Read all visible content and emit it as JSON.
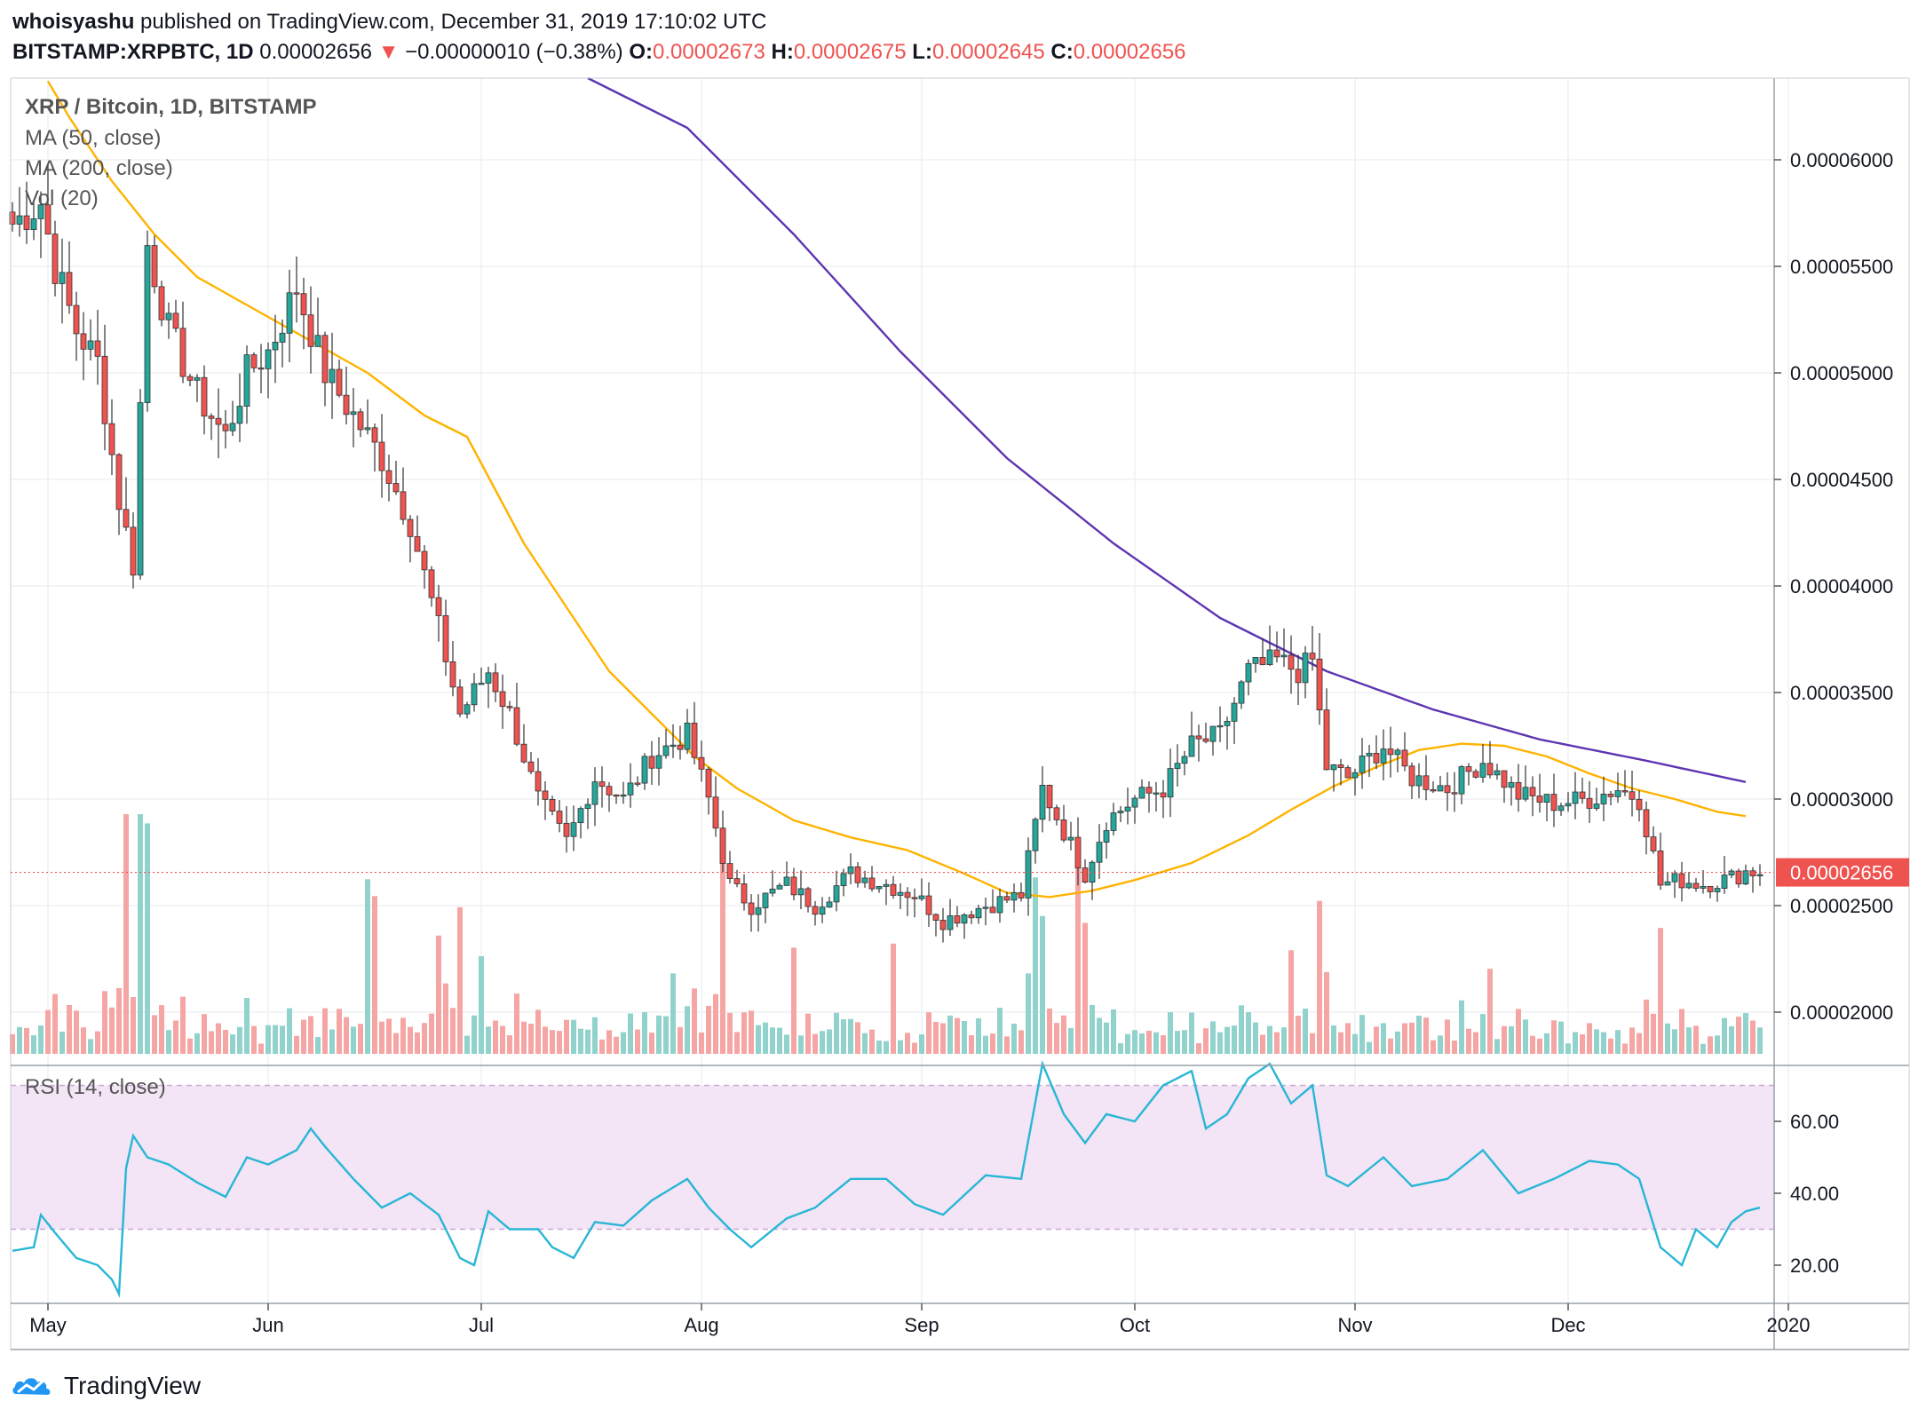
{
  "header": {
    "publisher": "whoisyashu",
    "published_text": "published on TradingView.com, December 31, 2019 17:10:02 UTC",
    "symbol": "BITSTAMP:XRPBTC, 1D",
    "last": "0.00002656",
    "change_arrow": "▼",
    "change": "−0.00000010 (−0.38%)",
    "o_label": "O:",
    "o_value": "0.00002673",
    "h_label": "H:",
    "h_value": "0.00002675",
    "l_label": "L:",
    "l_value": "0.00002645",
    "c_label": "C:",
    "c_value": "0.00002656"
  },
  "legend": {
    "title": "XRP / Bitcoin, 1D, BITSTAMP",
    "ma50": "MA (50, close)",
    "ma200": "MA (200, close)",
    "vol": "Vol (20)",
    "rsi": "RSI (14, close)"
  },
  "footer": {
    "brand": "TradingView"
  },
  "colors": {
    "up": "#26a69a",
    "down": "#ef5350",
    "ma50": "#ffb300",
    "ma200": "#5e35b1",
    "rsi_line": "#29b6d6",
    "rsi_band": "#f3e5f5",
    "price_label": "#ef5350"
  },
  "chart_data": {
    "type": "candlestick",
    "price_axis": {
      "ticks": [
        {
          "value": 6e-05,
          "label": "0.00006000"
        },
        {
          "value": 5.5e-05,
          "label": "0.00005500"
        },
        {
          "value": 5e-05,
          "label": "0.00005000"
        },
        {
          "value": 4.5e-05,
          "label": "0.00004500"
        },
        {
          "value": 4e-05,
          "label": "0.00004000"
        },
        {
          "value": 3.5e-05,
          "label": "0.00003500"
        },
        {
          "value": 3e-05,
          "label": "0.00003000"
        },
        {
          "value": 2.5e-05,
          "label": "0.00002500"
        },
        {
          "value": 2e-05,
          "label": "0.00002000"
        }
      ],
      "last_price": 2.656e-05,
      "last_price_label": "0.00002656"
    },
    "rsi_axis": {
      "ticks": [
        {
          "value": 60,
          "label": "60.00"
        },
        {
          "value": 40,
          "label": "40.00"
        },
        {
          "value": 20,
          "label": "20.00"
        }
      ],
      "band_upper": 70,
      "band_lower": 30
    },
    "time_axis": {
      "labels": [
        {
          "day": 5,
          "label": "May"
        },
        {
          "day": 36,
          "label": "Jun"
        },
        {
          "day": 66,
          "label": "Jul"
        },
        {
          "day": 97,
          "label": "Aug"
        },
        {
          "day": 128,
          "label": "Sep"
        },
        {
          "day": 158,
          "label": "Oct"
        },
        {
          "day": 189,
          "label": "Nov"
        },
        {
          "day": 219,
          "label": "Dec"
        },
        {
          "day": 250,
          "label": "2020"
        }
      ]
    },
    "anchors": {
      "close": [
        [
          0,
          5.7e-05
        ],
        [
          4,
          5.8e-05
        ],
        [
          6,
          5.5e-05
        ],
        [
          9,
          5.2e-05
        ],
        [
          12,
          5.05e-05
        ],
        [
          15,
          4.4e-05
        ],
        [
          17,
          4.1e-05
        ],
        [
          19,
          5.6e-05
        ],
        [
          22,
          5.2e-05
        ],
        [
          26,
          4.9e-05
        ],
        [
          30,
          4.7e-05
        ],
        [
          33,
          5e-05
        ],
        [
          36,
          5.1e-05
        ],
        [
          40,
          5.4e-05
        ],
        [
          44,
          5e-05
        ],
        [
          48,
          4.8e-05
        ],
        [
          52,
          4.6e-05
        ],
        [
          56,
          4.3e-05
        ],
        [
          60,
          3.8e-05
        ],
        [
          63,
          3.4e-05
        ],
        [
          67,
          3.6e-05
        ],
        [
          70,
          3.4e-05
        ],
        [
          74,
          3e-05
        ],
        [
          78,
          2.8e-05
        ],
        [
          82,
          3.1e-05
        ],
        [
          86,
          3e-05
        ],
        [
          90,
          3.2e-05
        ],
        [
          95,
          3.3e-05
        ],
        [
          98,
          3e-05
        ],
        [
          101,
          2.6e-05
        ],
        [
          104,
          2.5e-05
        ],
        [
          109,
          2.6e-05
        ],
        [
          113,
          2.5e-05
        ],
        [
          118,
          2.65e-05
        ],
        [
          123,
          2.6e-05
        ],
        [
          127,
          2.55e-05
        ],
        [
          131,
          2.43e-05
        ],
        [
          137,
          2.5e-05
        ],
        [
          142,
          2.55e-05
        ],
        [
          145,
          3.05e-05
        ],
        [
          148,
          2.85e-05
        ],
        [
          151,
          2.65e-05
        ],
        [
          154,
          2.9e-05
        ],
        [
          158,
          3e-05
        ],
        [
          162,
          3.05e-05
        ],
        [
          166,
          3.25e-05
        ],
        [
          170,
          3.3e-05
        ],
        [
          174,
          3.6e-05
        ],
        [
          178,
          3.65e-05
        ],
        [
          181,
          3.6e-05
        ],
        [
          183,
          3.65e-05
        ],
        [
          185,
          3.15e-05
        ],
        [
          188,
          3.1e-05
        ],
        [
          193,
          3.25e-05
        ],
        [
          197,
          3.1e-05
        ],
        [
          202,
          3.05e-05
        ],
        [
          207,
          3.18e-05
        ],
        [
          212,
          3.02e-05
        ],
        [
          217,
          2.98e-05
        ],
        [
          222,
          3e-05
        ],
        [
          226,
          3.05e-05
        ],
        [
          229,
          3e-05
        ],
        [
          232,
          2.6e-05
        ],
        [
          235,
          2.62e-05
        ],
        [
          238,
          2.6e-05
        ],
        [
          242,
          2.63e-05
        ],
        [
          244,
          2.66e-05
        ]
      ],
      "ma50": [
        [
          0,
          6.65e-05
        ],
        [
          8,
          6.2e-05
        ],
        [
          14,
          5.9e-05
        ],
        [
          20,
          5.65e-05
        ],
        [
          26,
          5.45e-05
        ],
        [
          34,
          5.3e-05
        ],
        [
          42,
          5.15e-05
        ],
        [
          50,
          5e-05
        ],
        [
          58,
          4.8e-05
        ],
        [
          64,
          4.7e-05
        ],
        [
          68,
          4.45e-05
        ],
        [
          72,
          4.2e-05
        ],
        [
          78,
          3.9e-05
        ],
        [
          84,
          3.6e-05
        ],
        [
          90,
          3.4e-05
        ],
        [
          96,
          3.2e-05
        ],
        [
          102,
          3.05e-05
        ],
        [
          110,
          2.9e-05
        ],
        [
          118,
          2.82e-05
        ],
        [
          126,
          2.76e-05
        ],
        [
          134,
          2.65e-05
        ],
        [
          140,
          2.56e-05
        ],
        [
          146,
          2.54e-05
        ],
        [
          152,
          2.57e-05
        ],
        [
          158,
          2.62e-05
        ],
        [
          166,
          2.7e-05
        ],
        [
          174,
          2.83e-05
        ],
        [
          180,
          2.95e-05
        ],
        [
          186,
          3.06e-05
        ],
        [
          192,
          3.15e-05
        ],
        [
          198,
          3.23e-05
        ],
        [
          204,
          3.26e-05
        ],
        [
          210,
          3.25e-05
        ],
        [
          216,
          3.2e-05
        ],
        [
          222,
          3.12e-05
        ],
        [
          228,
          3.05e-05
        ],
        [
          234,
          3e-05
        ],
        [
          240,
          2.94e-05
        ],
        [
          244,
          2.92e-05
        ]
      ],
      "ma200": [
        [
          0,
          7.8e-05
        ],
        [
          20,
          7.45e-05
        ],
        [
          50,
          6.95e-05
        ],
        [
          80,
          6.4e-05
        ],
        [
          95,
          6.15e-05
        ],
        [
          110,
          5.65e-05
        ],
        [
          125,
          5.1e-05
        ],
        [
          140,
          4.6e-05
        ],
        [
          155,
          4.2e-05
        ],
        [
          170,
          3.85e-05
        ],
        [
          185,
          3.6e-05
        ],
        [
          200,
          3.42e-05
        ],
        [
          215,
          3.28e-05
        ],
        [
          230,
          3.18e-05
        ],
        [
          244,
          3.08e-05
        ]
      ],
      "rsi": [
        [
          0,
          24
        ],
        [
          3,
          25
        ],
        [
          4,
          34
        ],
        [
          6,
          29
        ],
        [
          9,
          22
        ],
        [
          12,
          20
        ],
        [
          14,
          16
        ],
        [
          15,
          12
        ],
        [
          16,
          47
        ],
        [
          17,
          56
        ],
        [
          19,
          50
        ],
        [
          22,
          48
        ],
        [
          26,
          43
        ],
        [
          30,
          39
        ],
        [
          33,
          50
        ],
        [
          36,
          48
        ],
        [
          40,
          52
        ],
        [
          42,
          58
        ],
        [
          44,
          53
        ],
        [
          48,
          44
        ],
        [
          52,
          36
        ],
        [
          56,
          40
        ],
        [
          60,
          34
        ],
        [
          63,
          22
        ],
        [
          65,
          20
        ],
        [
          67,
          35
        ],
        [
          70,
          30
        ],
        [
          74,
          30
        ],
        [
          76,
          25
        ],
        [
          79,
          22
        ],
        [
          82,
          32
        ],
        [
          86,
          31
        ],
        [
          90,
          38
        ],
        [
          95,
          44
        ],
        [
          98,
          36
        ],
        [
          101,
          30
        ],
        [
          104,
          25
        ],
        [
          109,
          33
        ],
        [
          113,
          36
        ],
        [
          118,
          44
        ],
        [
          123,
          44
        ],
        [
          127,
          37
        ],
        [
          131,
          34
        ],
        [
          137,
          45
        ],
        [
          142,
          44
        ],
        [
          145,
          76
        ],
        [
          148,
          62
        ],
        [
          151,
          54
        ],
        [
          154,
          62
        ],
        [
          158,
          60
        ],
        [
          162,
          70
        ],
        [
          166,
          74
        ],
        [
          168,
          58
        ],
        [
          171,
          62
        ],
        [
          174,
          72
        ],
        [
          177,
          76
        ],
        [
          180,
          65
        ],
        [
          183,
          70
        ],
        [
          185,
          45
        ],
        [
          188,
          42
        ],
        [
          193,
          50
        ],
        [
          197,
          42
        ],
        [
          202,
          44
        ],
        [
          207,
          52
        ],
        [
          212,
          40
        ],
        [
          217,
          44
        ],
        [
          222,
          49
        ],
        [
          226,
          48
        ],
        [
          229,
          44
        ],
        [
          232,
          25
        ],
        [
          235,
          20
        ],
        [
          237,
          30
        ],
        [
          240,
          25
        ],
        [
          242,
          32
        ],
        [
          244,
          35
        ],
        [
          246,
          36
        ]
      ]
    },
    "volume_spikes": [
      [
        16,
        3.6
      ],
      [
        18,
        3.0
      ],
      [
        19,
        1.8
      ],
      [
        50,
        2.4
      ],
      [
        51,
        2.1
      ],
      [
        60,
        1.2
      ],
      [
        63,
        1.6
      ],
      [
        66,
        1.4
      ],
      [
        93,
        0.9
      ],
      [
        100,
        2.2
      ],
      [
        110,
        1.1
      ],
      [
        124,
        1.3
      ],
      [
        144,
        1.8
      ],
      [
        145,
        1.4
      ],
      [
        150,
        2.1
      ],
      [
        151,
        1.6
      ],
      [
        180,
        1.1
      ],
      [
        184,
        1.2
      ],
      [
        208,
        1.0
      ],
      [
        232,
        0.9
      ]
    ],
    "note_candles": "OHLC series reconstructed approximately from the close anchors"
  }
}
